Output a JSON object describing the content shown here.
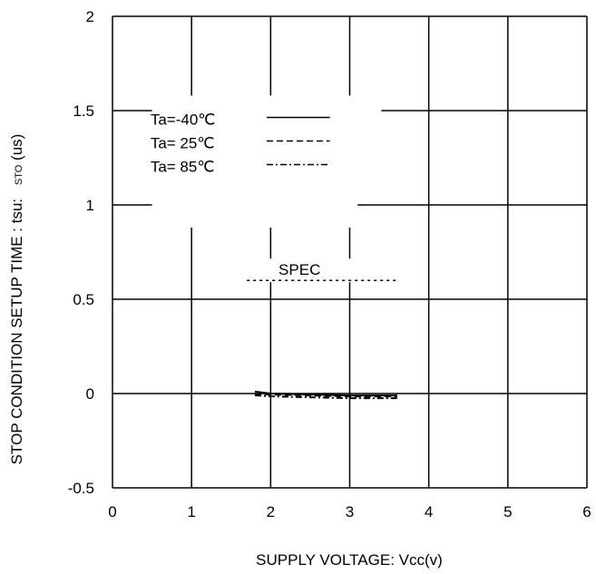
{
  "chart_data": {
    "type": "line",
    "title": "",
    "xlabel": "SUPPLY VOLTAGE: Vcc(v)",
    "ylabel_main": "STOP CONDITION SETUP TIME : tsu:",
    "ylabel_sub": "STO",
    "ylabel_unit": "(us)",
    "xlim": [
      0,
      6
    ],
    "ylim": [
      -0.5,
      2
    ],
    "xticks": [
      0,
      1,
      2,
      3,
      4,
      5,
      6
    ],
    "yticks": [
      -0.5,
      0,
      0.5,
      1,
      1.5,
      2
    ],
    "ytick_labels": [
      "-0.5",
      "0",
      "0.5",
      "1",
      "1.5",
      "2"
    ],
    "xtick_labels": [
      "0",
      "1",
      "2",
      "3",
      "4",
      "5",
      "6"
    ],
    "grid": true,
    "legend_position": "top-left",
    "series": [
      {
        "name": "Ta=-40℃",
        "dash": "solid",
        "x": [
          1.8,
          2.0,
          2.5,
          3.0,
          3.6
        ],
        "y": [
          0.01,
          0.0,
          -0.005,
          -0.01,
          -0.01
        ]
      },
      {
        "name": "Ta= 25℃",
        "dash": "dashed",
        "x": [
          1.8,
          2.0,
          2.5,
          3.0,
          3.6
        ],
        "y": [
          0.0,
          0.0,
          -0.005,
          -0.01,
          -0.01
        ]
      },
      {
        "name": "Ta= 85℃",
        "dash": "dashdot",
        "x": [
          1.8,
          2.0,
          2.5,
          3.0,
          3.6
        ],
        "y": [
          0.0,
          -0.005,
          -0.01,
          -0.015,
          -0.015
        ]
      }
    ],
    "spec": {
      "label": "SPEC",
      "value": 0.6,
      "x_range": [
        1.7,
        3.6
      ]
    }
  }
}
